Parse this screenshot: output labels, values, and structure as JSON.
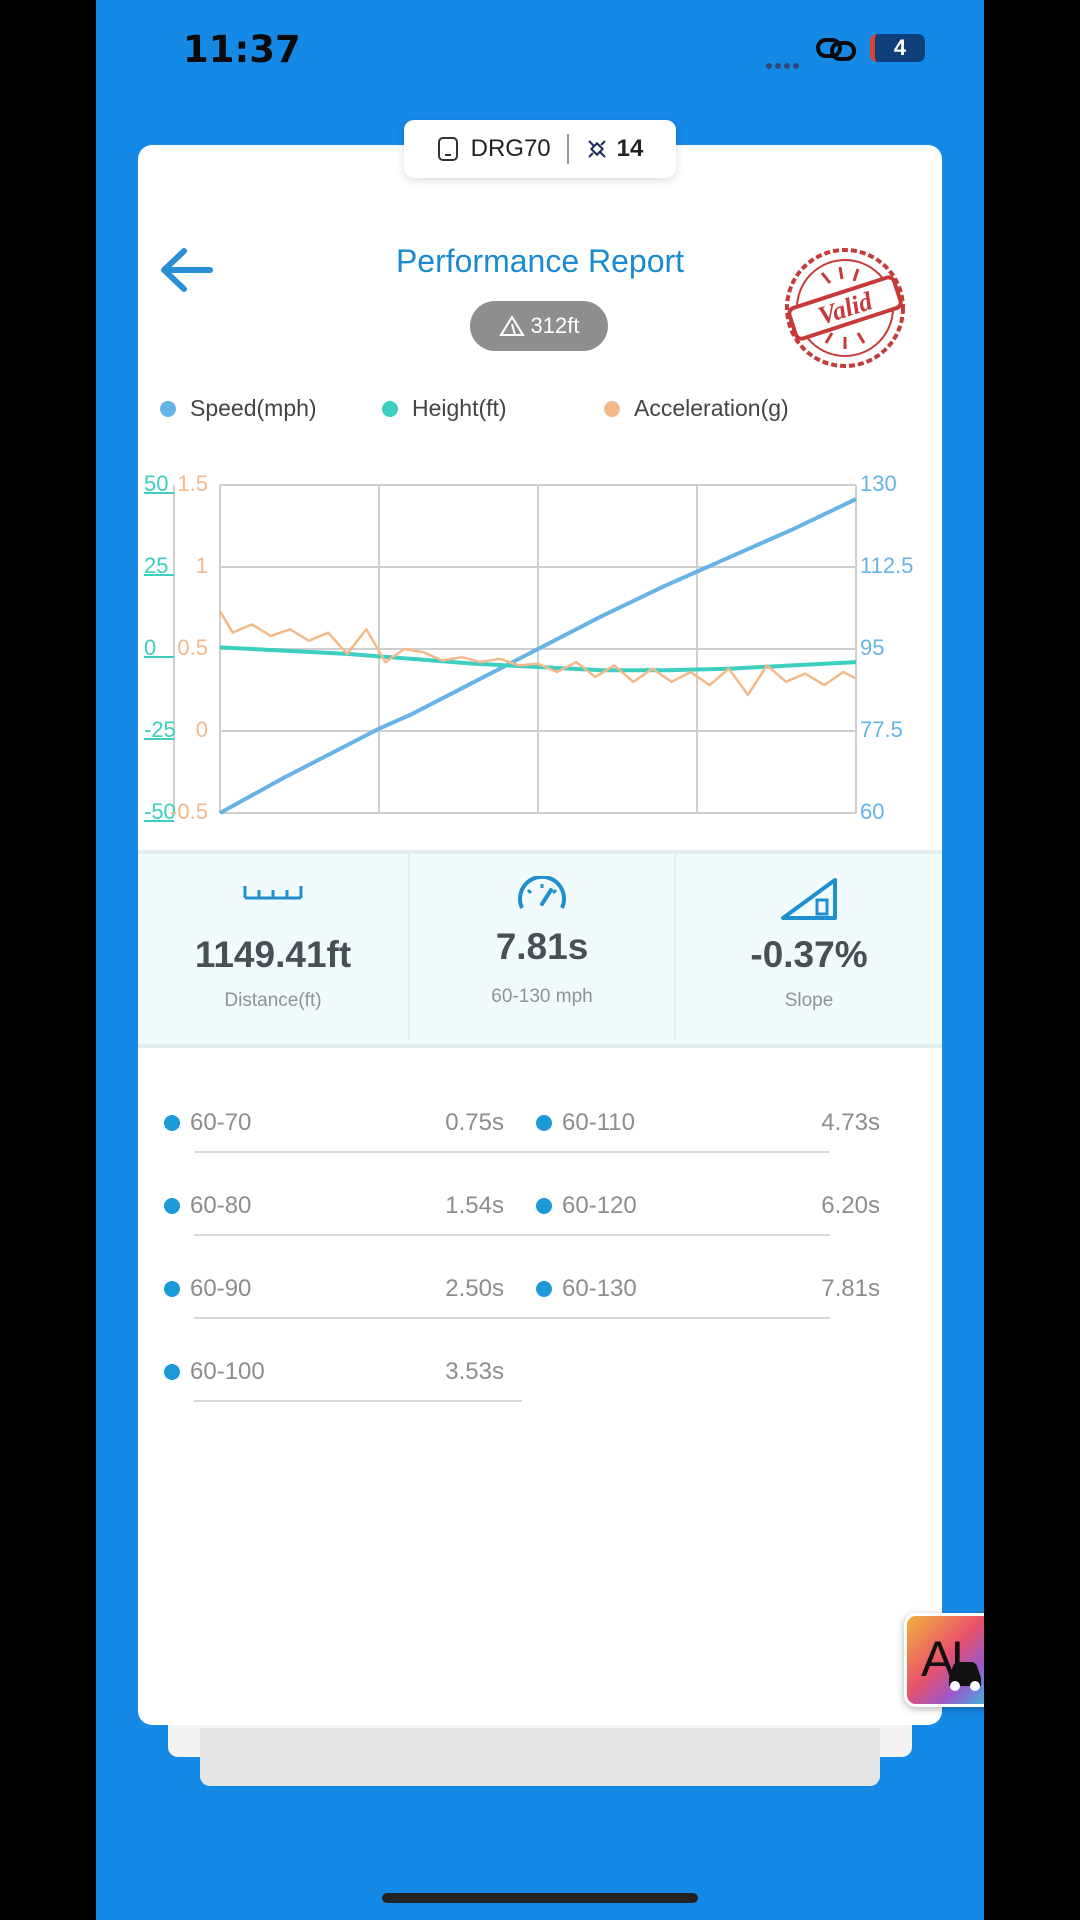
{
  "status_bar": {
    "time": "11:37",
    "battery": "4"
  },
  "device": {
    "name": "DRG70",
    "satellites": "14"
  },
  "header": {
    "title": "Performance Report",
    "altitude": "312ft",
    "stamp": "Valid"
  },
  "legend": [
    {
      "label": "Speed(mph)",
      "color": "#66b3e6"
    },
    {
      "label": "Height(ft)",
      "color": "#3ccfbf"
    },
    {
      "label": "Acceleration(g)",
      "color": "#f2b98a"
    }
  ],
  "chart_data": {
    "type": "line",
    "axes": {
      "height": {
        "ticks": [
          "50",
          "25",
          "0",
          "-25",
          "-50"
        ],
        "range": [
          -50,
          50
        ],
        "color": "#3ccfbf"
      },
      "acceleration": {
        "ticks": [
          "1.5",
          "1",
          "0.5",
          "0",
          "-0.5"
        ],
        "range": [
          -0.5,
          1.5
        ],
        "color": "#f2b98a"
      },
      "speed": {
        "ticks": [
          "130",
          "112.5",
          "95",
          "77.5",
          "60"
        ],
        "range": [
          60,
          130
        ],
        "color": "#66b3e6"
      }
    },
    "x_range": [
      0,
      100
    ],
    "grid": true,
    "series": [
      {
        "name": "Speed(mph)",
        "axis": "speed",
        "color": "#66b3e6",
        "x": [
          0,
          10,
          20,
          25,
          30,
          40,
          50,
          60,
          70,
          80,
          90,
          100
        ],
        "y": [
          60,
          67.5,
          74.5,
          78,
          81,
          88,
          95,
          102,
          108.5,
          114.5,
          120.5,
          127
        ]
      },
      {
        "name": "Height(ft)",
        "axis": "height",
        "color": "#3ccfbf",
        "x": [
          0,
          10,
          20,
          30,
          40,
          50,
          60,
          70,
          80,
          90,
          100
        ],
        "y": [
          0.5,
          -0.5,
          -1.5,
          -3,
          -4.5,
          -5.5,
          -6.5,
          -6.5,
          -6,
          -5,
          -4
        ]
      },
      {
        "name": "Acceleration(g)",
        "axis": "acceleration",
        "color": "#f2b98a",
        "x": [
          0,
          2,
          5,
          8,
          11,
          14,
          17,
          20,
          23,
          26,
          29,
          32,
          35,
          38,
          41,
          44,
          47,
          50,
          53,
          56,
          59,
          62,
          65,
          68,
          71,
          74,
          77,
          80,
          83,
          86,
          89,
          92,
          95,
          98,
          100
        ],
        "y": [
          0.73,
          0.6,
          0.65,
          0.58,
          0.62,
          0.55,
          0.6,
          0.47,
          0.62,
          0.42,
          0.5,
          0.48,
          0.43,
          0.45,
          0.42,
          0.44,
          0.4,
          0.41,
          0.36,
          0.42,
          0.33,
          0.4,
          0.3,
          0.38,
          0.3,
          0.36,
          0.28,
          0.38,
          0.22,
          0.4,
          0.3,
          0.35,
          0.28,
          0.36,
          0.32
        ]
      }
    ]
  },
  "metrics": [
    {
      "value": "1149.41ft",
      "label": "Distance(ft)",
      "icon": "ruler-icon"
    },
    {
      "value": "7.81s",
      "label": "60-130 mph",
      "icon": "speedometer-icon"
    },
    {
      "value": "-0.37%",
      "label": "Slope",
      "icon": "slope-icon"
    }
  ],
  "splits_left": [
    {
      "range": "60-70",
      "time": "0.75s"
    },
    {
      "range": "60-80",
      "time": "1.54s"
    },
    {
      "range": "60-90",
      "time": "2.50s"
    },
    {
      "range": "60-100",
      "time": "3.53s"
    }
  ],
  "splits_right": [
    {
      "range": "60-110",
      "time": "4.73s"
    },
    {
      "range": "60-120",
      "time": "6.20s"
    },
    {
      "range": "60-130",
      "time": "7.81s"
    }
  ],
  "ai_button": {
    "label": "AI"
  }
}
